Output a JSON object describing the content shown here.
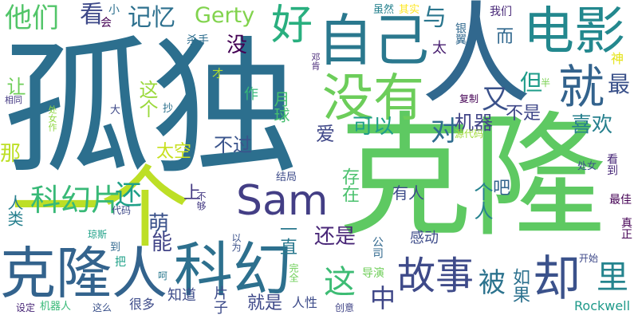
{
  "words": [
    {
      "text": "孤独",
      "color": "#2c6f8e"
    },
    {
      "text": "克隆",
      "color": "#5ec962"
    },
    {
      "text": "人",
      "color": "#31688e"
    },
    {
      "text": "一个",
      "color": "#bddf26"
    },
    {
      "text": "克隆人",
      "color": "#33638d"
    },
    {
      "text": "科幻",
      "color": "#2d708e"
    },
    {
      "text": "Sam",
      "color": "#433e85"
    },
    {
      "text": "自己",
      "color": "#2a788e"
    },
    {
      "text": "电影",
      "color": "#23888e"
    },
    {
      "text": "没有",
      "color": "#6ccd5a"
    },
    {
      "text": "就",
      "color": "#33638d"
    },
    {
      "text": "好",
      "color": "#29af7f"
    },
    {
      "text": "却",
      "color": "#3b528b"
    },
    {
      "text": "故事",
      "color": "#3e4a89"
    },
    {
      "text": "科幻片",
      "color": "#38b977"
    },
    {
      "text": "他们",
      "color": "#52c569"
    },
    {
      "text": "记忆",
      "color": "#2d708e"
    },
    {
      "text": "看",
      "color": "#3e4989"
    },
    {
      "text": "Gerty",
      "color": "#81d34d"
    },
    {
      "text": "与",
      "color": "#2a768e"
    },
    {
      "text": "又",
      "color": "#3b528b"
    },
    {
      "text": "对",
      "color": "#2f6c8e"
    },
    {
      "text": "最",
      "color": "#3b528b"
    },
    {
      "text": "喜欢",
      "color": "#27808e"
    },
    {
      "text": "机器",
      "color": "#414487"
    },
    {
      "text": "可以",
      "color": "#1f9e89"
    },
    {
      "text": "不是",
      "color": "#3f4788"
    },
    {
      "text": "但",
      "color": "#1e9c89"
    },
    {
      "text": "里",
      "color": "#25848e"
    },
    {
      "text": "被",
      "color": "#2c738e"
    },
    {
      "text": "还",
      "color": "#1fa088"
    },
    {
      "text": "这",
      "color": "#3dbc74"
    },
    {
      "text": "中",
      "color": "#3f4788"
    },
    {
      "text": "还是",
      "color": "#482677"
    },
    {
      "text": "就是",
      "color": "#3e4989"
    },
    {
      "text": "没",
      "color": "#440154"
    },
    {
      "text": "这个",
      "color": "#9bd93c"
    },
    {
      "text": "不过",
      "color": "#3a548c"
    },
    {
      "text": "爱",
      "color": "#3f4788"
    },
    {
      "text": "月球",
      "color": "#46c06f"
    },
    {
      "text": "太空",
      "color": "#c8e020"
    },
    {
      "text": "有人",
      "color": "#3e4c8a"
    },
    {
      "text": "个人",
      "color": "#26828e"
    },
    {
      "text": "感动",
      "color": "#3e4c8a"
    },
    {
      "text": "如果",
      "color": "#2c718e"
    },
    {
      "text": "存在",
      "color": "#4ac16d"
    },
    {
      "text": "萌",
      "color": "#3b528b"
    },
    {
      "text": "能",
      "color": "#414487"
    },
    {
      "text": "让",
      "color": "#6ece58"
    },
    {
      "text": "那",
      "color": "#bddf26"
    },
    {
      "text": "人类",
      "color": "#27808e"
    },
    {
      "text": "上",
      "color": "#443a83"
    },
    {
      "text": "作",
      "color": "#35b779"
    },
    {
      "text": "一直",
      "color": "#2a788e"
    },
    {
      "text": "吧",
      "color": "#33638d"
    },
    {
      "text": "太",
      "color": "#481f70"
    },
    {
      "text": "而",
      "color": "#31688e"
    },
    {
      "text": "片子",
      "color": "#3e4c8a"
    },
    {
      "text": "Rockwell",
      "color": "#1f9a8a"
    },
    {
      "text": "小",
      "color": "#2d708e"
    },
    {
      "text": "会",
      "color": "#440154"
    },
    {
      "text": "杀手",
      "color": "#2e6e8e"
    },
    {
      "text": "虽然",
      "color": "#26828e"
    },
    {
      "text": "其实",
      "color": "#fde725"
    },
    {
      "text": "我们",
      "color": "#482878"
    },
    {
      "text": "银翼",
      "color": "#31688e"
    },
    {
      "text": "神",
      "color": "#e5e419"
    },
    {
      "text": "半",
      "color": "#7ad151"
    },
    {
      "text": "复制",
      "color": "#440154"
    },
    {
      "text": "源代码",
      "color": "#a0da39"
    },
    {
      "text": "处女",
      "color": "#3b528b"
    },
    {
      "text": "看到",
      "color": "#482878"
    },
    {
      "text": "最佳",
      "color": "#440154"
    },
    {
      "text": "真正",
      "color": "#440154"
    },
    {
      "text": "开始",
      "color": "#3e4989"
    },
    {
      "text": "公司",
      "color": "#31688e"
    },
    {
      "text": "导演",
      "color": "#6ece58"
    },
    {
      "text": "完全",
      "color": "#6ece58"
    },
    {
      "text": "知道",
      "color": "#3e4c8a"
    },
    {
      "text": "人性",
      "color": "#3e4c8a"
    },
    {
      "text": "创意",
      "color": "#414487"
    },
    {
      "text": "很多",
      "color": "#3e4c8a"
    },
    {
      "text": "这么",
      "color": "#3b528b"
    },
    {
      "text": "机器人",
      "color": "#38b977"
    },
    {
      "text": "设定",
      "color": "#482677"
    },
    {
      "text": "把",
      "color": "#1fa188"
    },
    {
      "text": "到",
      "color": "#31688e"
    },
    {
      "text": "琼斯",
      "color": "#1fa188"
    },
    {
      "text": "代码",
      "color": "#3e4989"
    },
    {
      "text": "不够",
      "color": "#443a83"
    },
    {
      "text": "以为",
      "color": "#3b528b"
    },
    {
      "text": "结局",
      "color": "#3e4c8a"
    },
    {
      "text": "才",
      "color": "#b5de2b"
    },
    {
      "text": "邓肯",
      "color": "#482878"
    },
    {
      "text": "抄",
      "color": "#2c718e"
    },
    {
      "text": "大",
      "color": "#3e4989"
    },
    {
      "text": "相同",
      "color": "#443983"
    },
    {
      "text": "处女作",
      "color": "#90d743"
    },
    {
      "text": "呵",
      "color": "#2a788e"
    }
  ]
}
